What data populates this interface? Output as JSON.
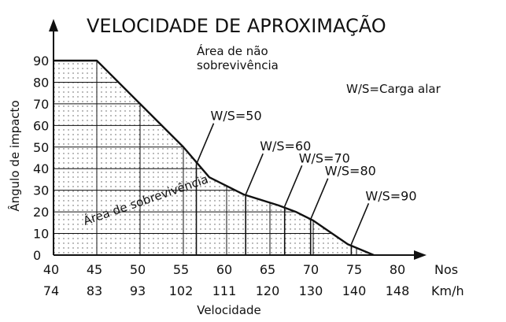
{
  "chart_data": {
    "type": "area",
    "title": "VELOCIDADE DE APROXIMAÇÃO",
    "ylabel": "Ângulo de impacto",
    "xlabel": "Velocidade",
    "x_unit_knots": "Nos",
    "x_unit_kmh": "Km/h",
    "x_ticks_knots": [
      "40",
      "45",
      "50",
      "55",
      "60",
      "65",
      "70",
      "75",
      "80"
    ],
    "x_ticks_kmh": [
      "74",
      "83",
      "93",
      "102",
      "111",
      "120",
      "130",
      "140",
      "148"
    ],
    "y_ticks": [
      "0",
      "10",
      "20",
      "30",
      "40",
      "50",
      "60",
      "70",
      "80",
      "90"
    ],
    "xlim": [
      40,
      80
    ],
    "ylim": [
      0,
      90
    ],
    "grid": true,
    "boundary": {
      "x": [
        40,
        45,
        50,
        55,
        58,
        62,
        66,
        68,
        70,
        74,
        77
      ],
      "y": [
        90,
        90,
        70,
        50,
        36,
        28,
        23,
        20,
        16,
        5,
        0
      ]
    },
    "curves": [
      {
        "label": "W/S=50",
        "x": 56.5,
        "y": 42
      },
      {
        "label": "W/S=60",
        "x": 62.2,
        "y": 28
      },
      {
        "label": "W/S=70",
        "x": 66.7,
        "y": 22.5
      },
      {
        "label": "W/S=80",
        "x": 69.7,
        "y": 16.5
      },
      {
        "label": "W/S=90",
        "x": 74.4,
        "y": 5
      }
    ],
    "annotations": {
      "nao_sobrevivencia_1": "Área de não",
      "nao_sobrevivencia_2": "sobrevivência",
      "sobrevivencia": "Área de sobrevivência",
      "legend": "W/S=Carga alar"
    }
  }
}
